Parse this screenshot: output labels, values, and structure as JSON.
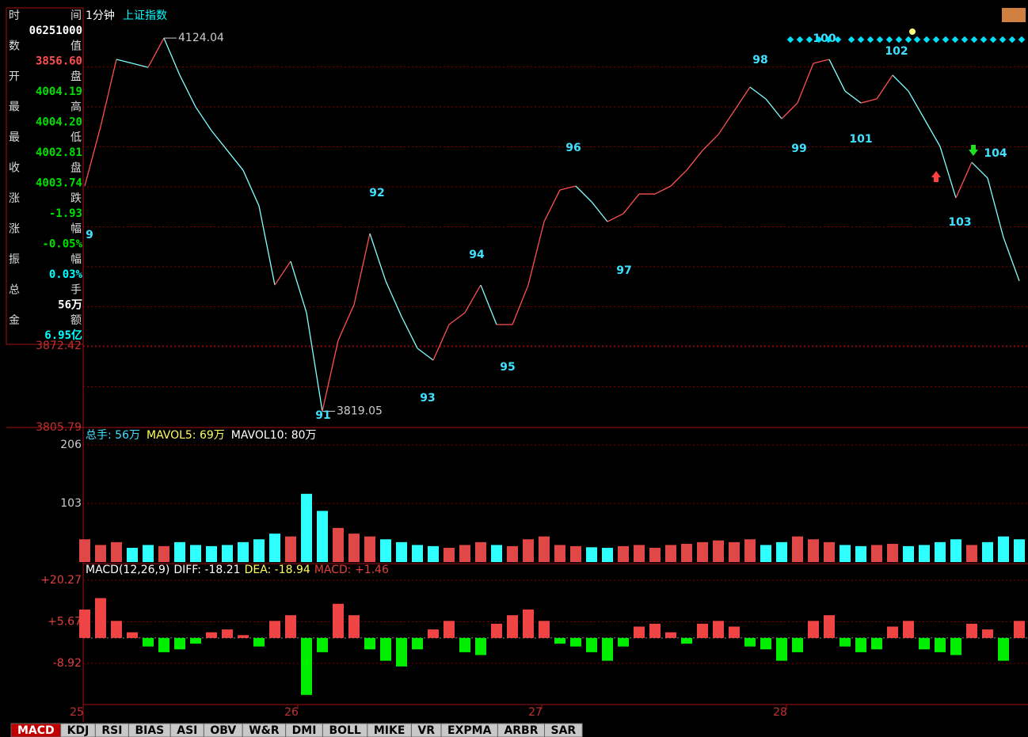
{
  "header": {
    "period": "1分钟",
    "name": "上证指数"
  },
  "info_panel": [
    {
      "label": [
        "时",
        "间"
      ],
      "value": "06251000",
      "color": "#ffffff"
    },
    {
      "label": [
        "数",
        "值"
      ],
      "value": "3856.60",
      "color": "#ff5050"
    },
    {
      "label": [
        "开",
        "盘"
      ],
      "value": "4004.19",
      "color": "#00e000"
    },
    {
      "label": [
        "最",
        "高"
      ],
      "value": "4004.20",
      "color": "#00e000"
    },
    {
      "label": [
        "最",
        "低"
      ],
      "value": "4002.81",
      "color": "#00e000"
    },
    {
      "label": [
        "收",
        "盘"
      ],
      "value": "4003.74",
      "color": "#00e000"
    },
    {
      "label": [
        "涨",
        "跌"
      ],
      "value": "-1.93",
      "color": "#00e000"
    },
    {
      "label": [
        "涨",
        "幅"
      ],
      "value": "-0.05%",
      "color": "#00e000"
    },
    {
      "label": [
        "振",
        "幅"
      ],
      "value": "0.03%",
      "color": "#00ffff"
    },
    {
      "label": [
        "总",
        "手"
      ],
      "value": "56万",
      "color": "#ffffff"
    },
    {
      "label": [
        "金",
        "额"
      ],
      "value": "6.95亿",
      "color": "#00ffff"
    }
  ],
  "price": {
    "values": [
      4003.1,
      4051.6,
      4106.6,
      4103.4,
      4100.1,
      4124.04,
      4093.7,
      4067.8,
      4048.4,
      4032.2,
      4016.0,
      3986.9,
      3922.2,
      3941.6,
      3899.6,
      3819.05,
      3877.0,
      3906.1,
      3964.3,
      3925.5,
      3896.4,
      3870.5,
      3860.8,
      3889.9,
      3899.6,
      3922.2,
      3889.9,
      3889.9,
      3922.2,
      3974.0,
      3999.9,
      4003.1,
      3990.2,
      3974.0,
      3980.5,
      3996.6,
      3996.6,
      4003.1,
      4016.0,
      4032.2,
      4045.2,
      4064.6,
      4084.0,
      4074.3,
      4058.1,
      4071.0,
      4103.4,
      4106.6,
      4080.7,
      4071.0,
      4074.3,
      4093.7,
      4080.7,
      4058.1,
      4035.4,
      3993.4,
      4022.5,
      4009.6,
      3961.1,
      3925.5
    ],
    "up_color": "#ff5050",
    "down_color": "#7fffff",
    "ylim": [
      3805.79,
      4132.5
    ],
    "yticks": [
      3805.79,
      3872.42
    ],
    "annotations": [
      "4124.04",
      "3819.05"
    ],
    "wave_labels": [
      "9",
      "91",
      "92",
      "93",
      "94",
      "95",
      "96",
      "97",
      "98",
      "99",
      "100",
      "101",
      "102",
      "103",
      "104"
    ]
  },
  "volume": {
    "legend": [
      "总手: 56万",
      "MAVOL5: 69万",
      "MAVOL10: 80万"
    ],
    "values": [
      40,
      30,
      35,
      25,
      30,
      28,
      35,
      30,
      28,
      30,
      35,
      40,
      50,
      45,
      120,
      90,
      60,
      50,
      45,
      40,
      35,
      30,
      28,
      25,
      30,
      35,
      30,
      28,
      40,
      45,
      30,
      28,
      26,
      25,
      28,
      30,
      25,
      30,
      32,
      35,
      38,
      35,
      40,
      30,
      35,
      45,
      40,
      35,
      30,
      28,
      30,
      32,
      28,
      30,
      35,
      40,
      30,
      35,
      45,
      40
    ],
    "ylim": [
      0,
      206
    ],
    "yticks": [
      103,
      206
    ]
  },
  "macd": {
    "legend": [
      "MACD(12,26,9)",
      "DIFF: -18.21",
      "DEA: -18.94",
      "MACD: +1.46"
    ],
    "values": [
      10,
      14,
      6,
      2,
      -3,
      -5,
      -4,
      -2,
      2,
      3,
      1,
      -3,
      6,
      8,
      -20,
      -5,
      12,
      8,
      -4,
      -8,
      -10,
      -4,
      3,
      6,
      -5,
      -6,
      5,
      8,
      10,
      6,
      -2,
      -3,
      -5,
      -8,
      -3,
      4,
      5,
      2,
      -2,
      5,
      6,
      4,
      -3,
      -4,
      -8,
      -5,
      6,
      8,
      -3,
      -5,
      -4,
      4,
      6,
      -4,
      -5,
      -6,
      5,
      3,
      -8,
      6
    ],
    "pos_color": "#ef4444",
    "neg_color": "#00ee00",
    "ylim": [
      -23.38,
      23.33
    ],
    "yticks": [
      {
        "value": 20.27,
        "label": "+20.27"
      },
      {
        "value": 5.67,
        "label": "+5.67"
      },
      -8.92
    ]
  },
  "x_labels": [
    "25",
    "26",
    "27",
    "28"
  ],
  "tabs": [
    "MACD",
    "KDJ",
    "RSI",
    "BIAS",
    "ASI",
    "OBV",
    "W&R",
    "DMI",
    "BOLL",
    "MIKE",
    "VR",
    "EXPMA",
    "ARBR",
    "SAR"
  ]
}
